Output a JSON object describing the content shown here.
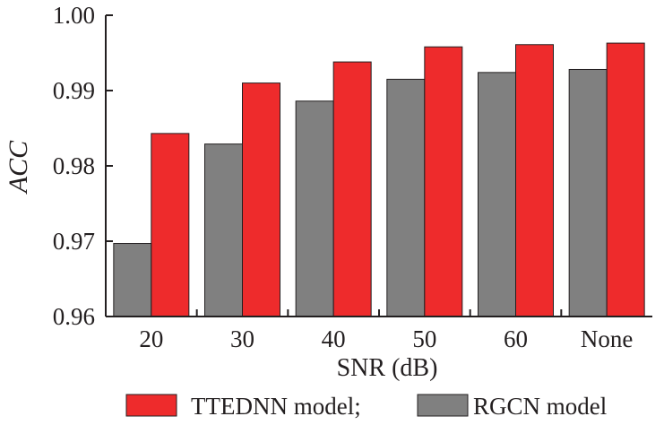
{
  "chart_data": {
    "type": "bar",
    "title": "",
    "xlabel": "SNR (dB)",
    "ylabel": "ACC",
    "ylim": [
      0.96,
      1.0
    ],
    "yticks": [
      "0.96",
      "0.97",
      "0.98",
      "0.99",
      "1.00"
    ],
    "categories": [
      "20",
      "30",
      "40",
      "50",
      "60",
      "None"
    ],
    "series": [
      {
        "name": "RGCN model",
        "color": "#808080",
        "values": [
          0.9697,
          0.9829,
          0.9886,
          0.9915,
          0.9924,
          0.9928
        ]
      },
      {
        "name": "TTEDNN model;",
        "color": "#ee2b2c",
        "values": [
          0.9843,
          0.991,
          0.9938,
          0.9958,
          0.9961,
          0.9963
        ]
      }
    ],
    "legend": {
      "placement": "bottom",
      "order": [
        1,
        0
      ]
    },
    "grid": false
  }
}
